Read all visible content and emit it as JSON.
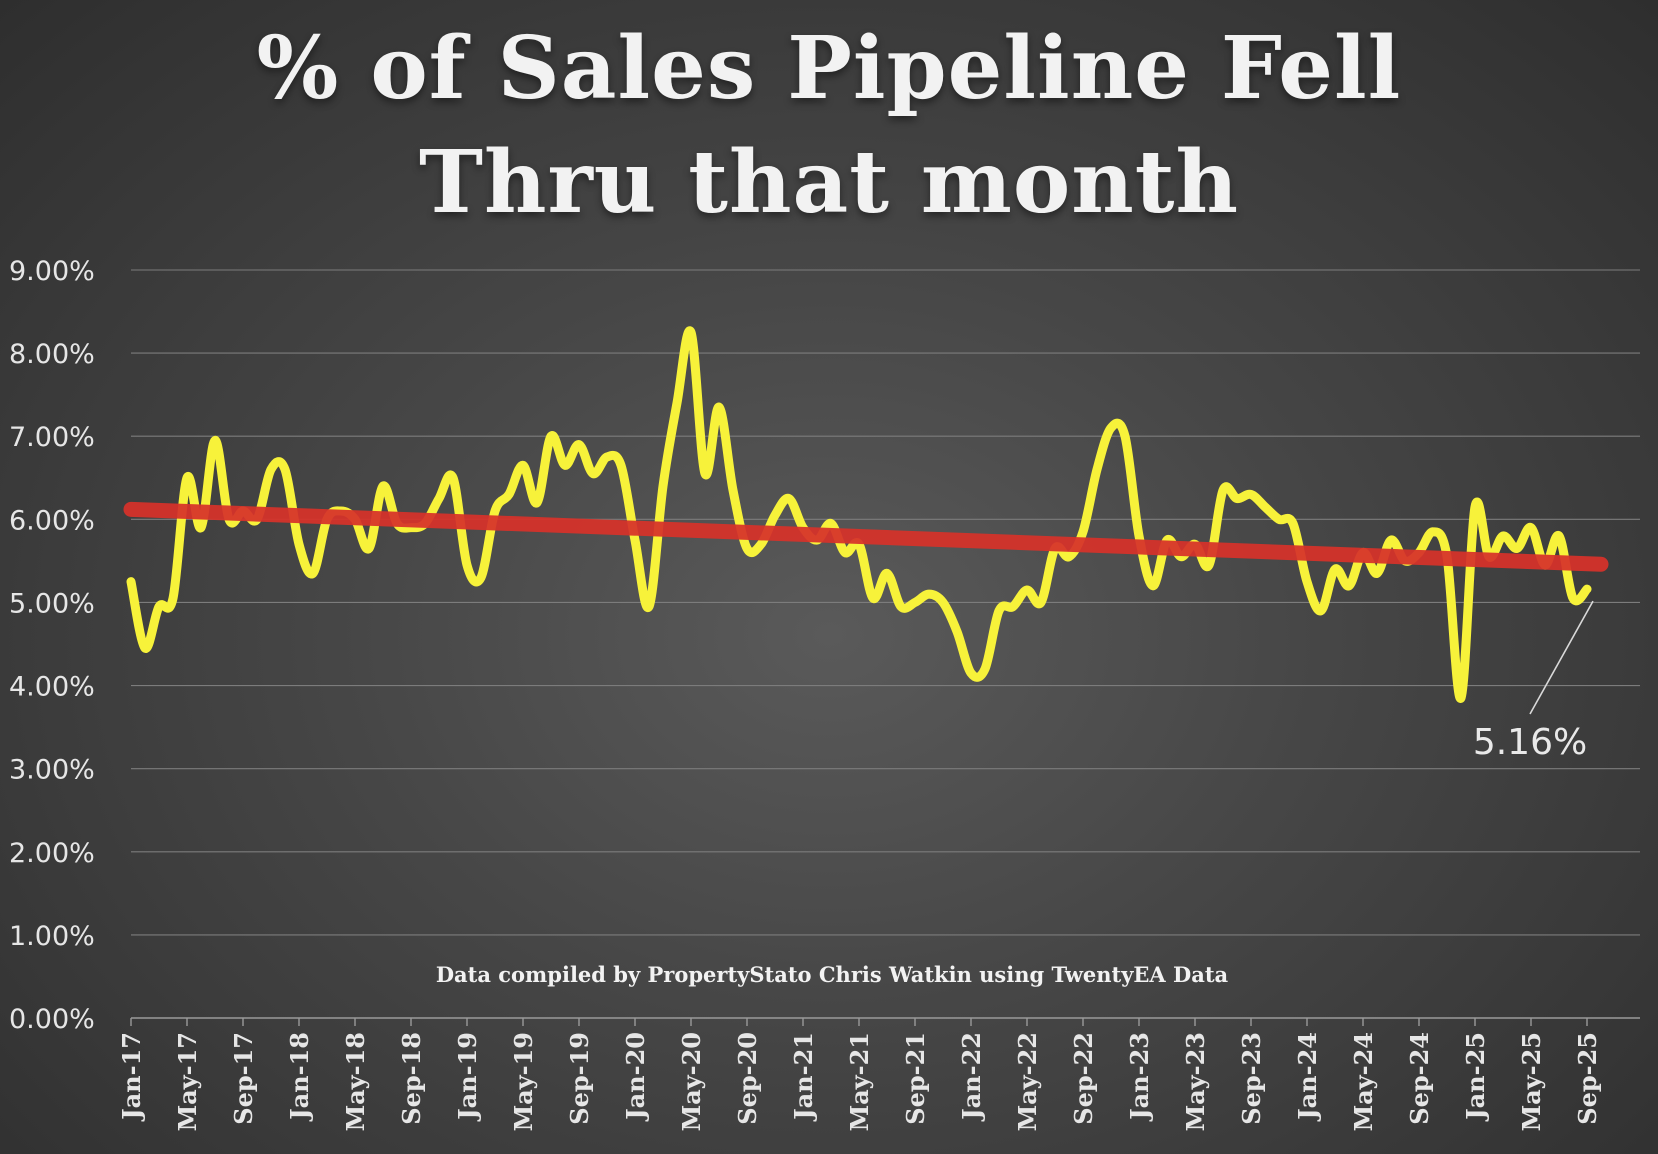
{
  "chart_data": {
    "type": "line",
    "title_lines": [
      "% of Sales Pipeline Fell",
      "Thru that month"
    ],
    "xlabel": "",
    "ylabel": "",
    "ylim": [
      0,
      0.09
    ],
    "y_ticks": [
      "0.00%",
      "1.00%",
      "2.00%",
      "3.00%",
      "4.00%",
      "5.00%",
      "6.00%",
      "7.00%",
      "8.00%",
      "9.00%"
    ],
    "x_ticks": [
      "Jan-17",
      "May-17",
      "Sep-17",
      "Jan-18",
      "May-18",
      "Sep-18",
      "Jan-19",
      "May-19",
      "Sep-19",
      "Jan-20",
      "May-20",
      "Sep-20",
      "Jan-21",
      "May-21",
      "Sep-21",
      "Jan-22",
      "May-22",
      "Sep-22",
      "Jan-23",
      "May-23",
      "Sep-23",
      "Jan-24",
      "May-24",
      "Sep-24",
      "Jan-25",
      "May-25",
      "Sep-25"
    ],
    "grid": true,
    "legend": "none",
    "series": [
      {
        "color": "#f7f23a",
        "x_start": "Jan-17",
        "x_end": "Oct-25",
        "values": [
          0.0525,
          0.0445,
          0.0495,
          0.0505,
          0.065,
          0.059,
          0.0695,
          0.06,
          0.061,
          0.06,
          0.066,
          0.066,
          0.057,
          0.0535,
          0.06,
          0.061,
          0.06,
          0.0565,
          0.064,
          0.0595,
          0.059,
          0.0595,
          0.0625,
          0.065,
          0.0545,
          0.053,
          0.061,
          0.063,
          0.0665,
          0.062,
          0.07,
          0.0665,
          0.069,
          0.0655,
          0.0675,
          0.0665,
          0.0575,
          0.0495,
          0.064,
          0.074,
          0.0825,
          0.0655,
          0.0735,
          0.0635,
          0.0565,
          0.057,
          0.0605,
          0.0625,
          0.059,
          0.0575,
          0.0595,
          0.056,
          0.057,
          0.0505,
          0.0535,
          0.0495,
          0.05,
          0.051,
          0.05,
          0.0465,
          0.0415,
          0.042,
          0.049,
          0.0495,
          0.0515,
          0.05,
          0.0565,
          0.0555,
          0.0585,
          0.066,
          0.071,
          0.07,
          0.058,
          0.052,
          0.0575,
          0.0555,
          0.057,
          0.0545,
          0.0635,
          0.0625,
          0.063,
          0.0615,
          0.06,
          0.0595,
          0.0525,
          0.049,
          0.054,
          0.052,
          0.056,
          0.0535,
          0.0575,
          0.055,
          0.056,
          0.0585,
          0.0555,
          0.0385,
          0.0615,
          0.0555,
          0.058,
          0.0565,
          0.059,
          0.0545,
          0.058,
          0.0505,
          0.0516
        ]
      },
      {
        "name": "",
        "color": "#d7322a",
        "kind": "trendline",
        "x_start": "Jan-17",
        "x_end": "Oct-25",
        "values": [
          0.0612,
          0.0546
        ]
      }
    ],
    "annotations": [
      {
        "text": "5.16%",
        "points_to": "Oct-25",
        "value": 0.0516
      }
    ],
    "source_note": "Data compiled by PropertyStato Chris Watkin using TwentyEA Data"
  }
}
